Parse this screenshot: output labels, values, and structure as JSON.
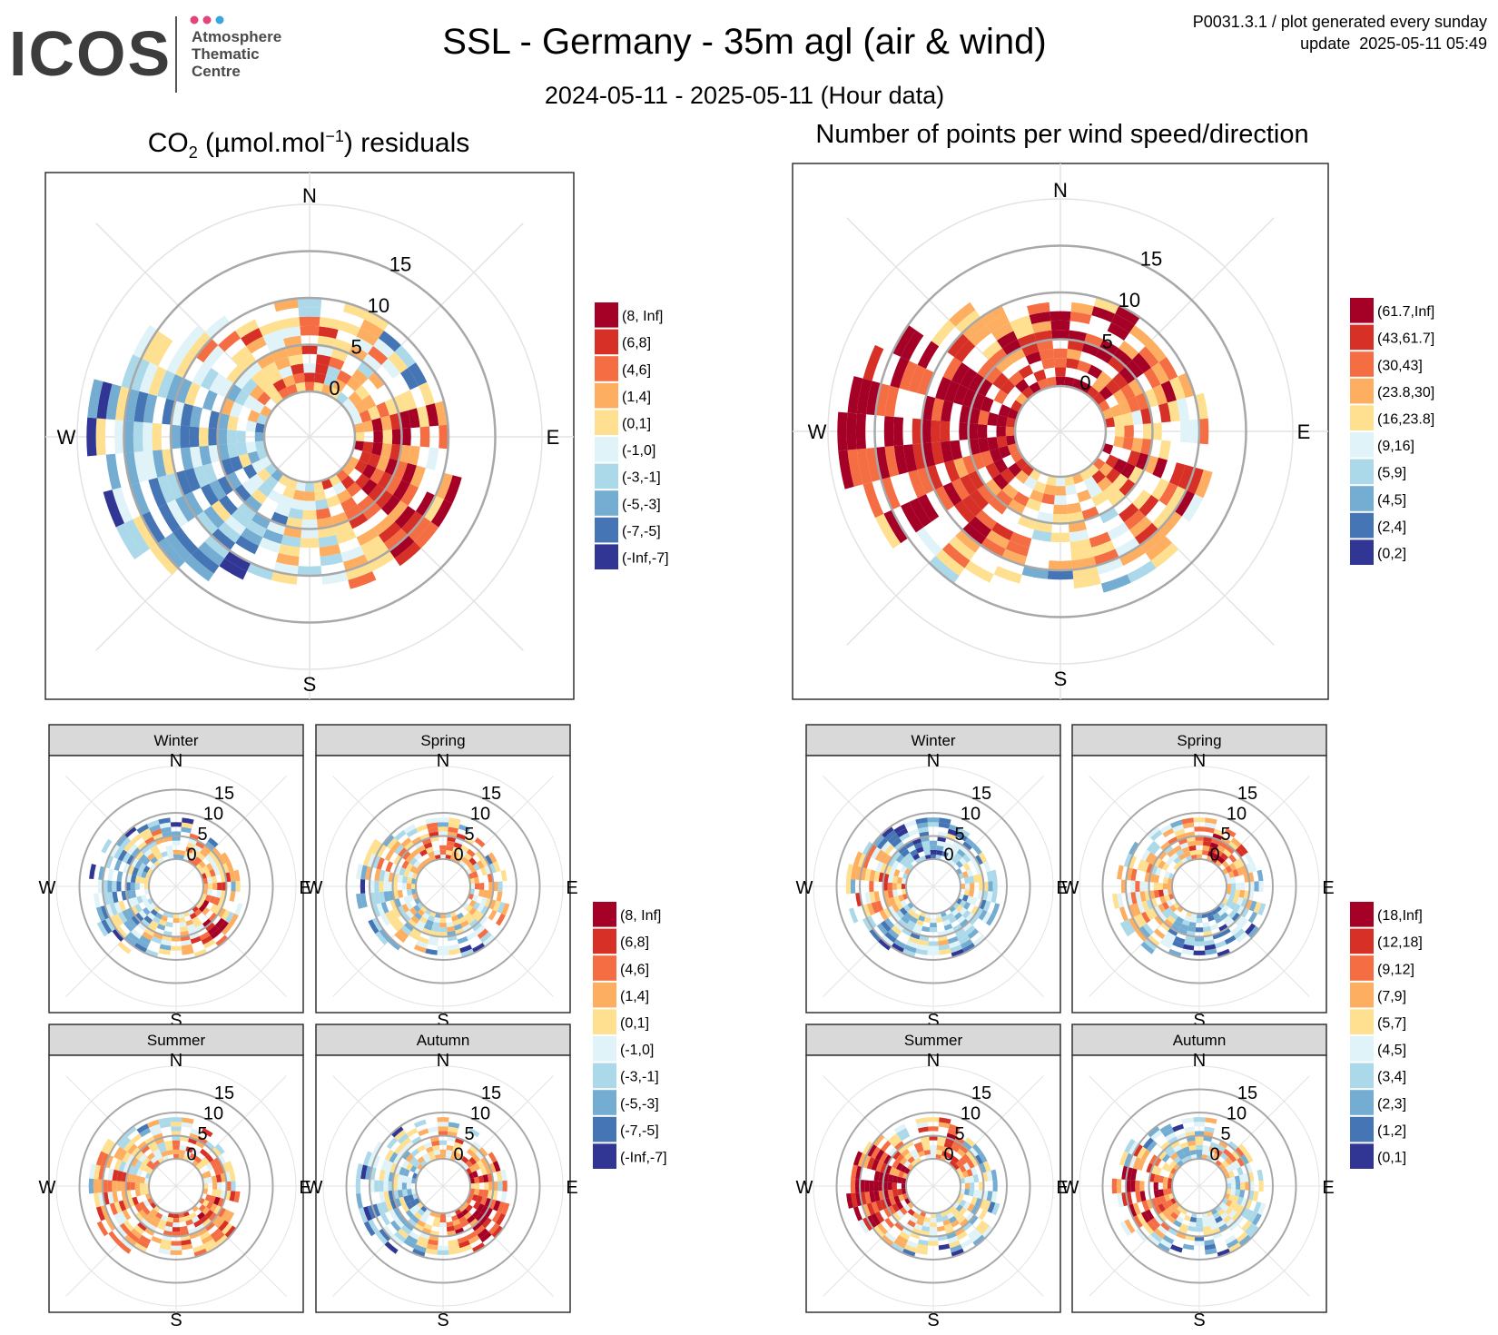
{
  "logo": {
    "wordmark": "ICOS",
    "line1": "Atmosphere",
    "line2": "Thematic",
    "line3": "Centre",
    "dot_colors": [
      "#e0457b",
      "#e0457b",
      "#3aa6dd"
    ]
  },
  "header": {
    "title": "SSL - Germany - 35m agl (air & wind)",
    "subtitle": "2024-05-11 - 2025-05-11 (Hour data)",
    "plot_id": "P0031.3.1 / plot generated every sunday",
    "update": "update  2025-05-11 05:49"
  },
  "panels": {
    "left_title": "residuals",
    "left_title_parts": {
      "species": "CO",
      "sub": "2",
      "unit_open": " (µmol.mol",
      "sup": "−1",
      "unit_close": ")"
    },
    "right_title": "Number of points per wind speed/direction"
  },
  "compass": {
    "N": "N",
    "E": "E",
    "S": "S",
    "W": "W"
  },
  "facets": [
    "Winter",
    "Spring",
    "Summer",
    "Autumn"
  ],
  "chart_data": [
    {
      "type": "heatmap",
      "subtype": "polar wind-rose (wind speed rings 0-15, 16 direction sectors)",
      "title": "CO2 (µmol.mol-1) residuals",
      "radial_ticks": [
        0,
        5,
        10,
        15
      ],
      "legend": [
        "(8, Inf]",
        "(6,8]",
        "(4,6]",
        "(1,4]",
        "(0,1]",
        "(-1,0]",
        "(-3,-1]",
        "(-5,-3]",
        "(-7,-5]",
        "(-Inf,-7]"
      ],
      "legend_colors": [
        "#a50026",
        "#d73027",
        "#f46d43",
        "#fdae61",
        "#fee090",
        "#e0f3f8",
        "#abd9e9",
        "#74add1",
        "#4575b4",
        "#313695"
      ],
      "sector_max_speed": [
        10,
        10,
        9,
        9,
        10,
        12,
        13,
        12,
        11,
        12,
        16,
        18,
        19,
        16,
        12,
        10
      ],
      "sector_class": [
        3,
        4,
        4,
        4,
        2,
        1,
        1,
        3,
        4,
        6,
        6,
        6,
        6,
        5,
        4,
        3
      ]
    },
    {
      "type": "heatmap",
      "subtype": "polar wind-rose (wind speed rings 0-15, 16 direction sectors)",
      "title": "Number of points per wind speed/direction",
      "radial_ticks": [
        0,
        5,
        10,
        15
      ],
      "legend": [
        "(61.7,Inf]",
        "(43,61.7]",
        "(30,43]",
        "(23.8,30]",
        "(16,23.8]",
        "(9,16]",
        "(5,9]",
        "(4,5]",
        "(2,4]",
        "(0,2]"
      ],
      "legend_colors": [
        "#a50026",
        "#d73027",
        "#f46d43",
        "#fdae61",
        "#fee090",
        "#e0f3f8",
        "#abd9e9",
        "#74add1",
        "#4575b4",
        "#313695"
      ],
      "sector_max_speed": [
        10,
        10,
        9,
        10,
        11,
        12,
        13,
        13,
        12,
        13,
        15,
        17,
        19,
        17,
        12,
        10
      ],
      "sector_class": [
        1,
        0,
        1,
        2,
        3,
        2,
        3,
        4,
        4,
        3,
        2,
        1,
        0,
        0,
        2,
        2
      ]
    },
    {
      "type": "heatmap",
      "subtype": "seasonal polar wind-roses of CO2 residuals",
      "facets": [
        "Winter",
        "Spring",
        "Summer",
        "Autumn"
      ],
      "radial_ticks": [
        0,
        5,
        10,
        15
      ],
      "legend": [
        "(8, Inf]",
        "(6,8]",
        "(4,6]",
        "(1,4]",
        "(0,1]",
        "(-1,0]",
        "(-3,-1]",
        "(-5,-3]",
        "(-7,-5]",
        "(-Inf,-7]"
      ],
      "legend_colors": [
        "#a50026",
        "#d73027",
        "#f46d43",
        "#fdae61",
        "#fee090",
        "#e0f3f8",
        "#abd9e9",
        "#74add1",
        "#4575b4",
        "#313695"
      ]
    },
    {
      "type": "heatmap",
      "subtype": "seasonal polar wind-roses of number of points",
      "facets": [
        "Winter",
        "Spring",
        "Summer",
        "Autumn"
      ],
      "radial_ticks": [
        0,
        5,
        10,
        15
      ],
      "legend": [
        "(18,Inf]",
        "(12,18]",
        "(9,12]",
        "(7,9]",
        "(5,7]",
        "(4,5]",
        "(3,4]",
        "(2,3]",
        "(1,2]",
        "(0,1]"
      ],
      "legend_colors": [
        "#a50026",
        "#d73027",
        "#f46d43",
        "#fdae61",
        "#fee090",
        "#e0f3f8",
        "#abd9e9",
        "#74add1",
        "#4575b4",
        "#313695"
      ]
    }
  ]
}
